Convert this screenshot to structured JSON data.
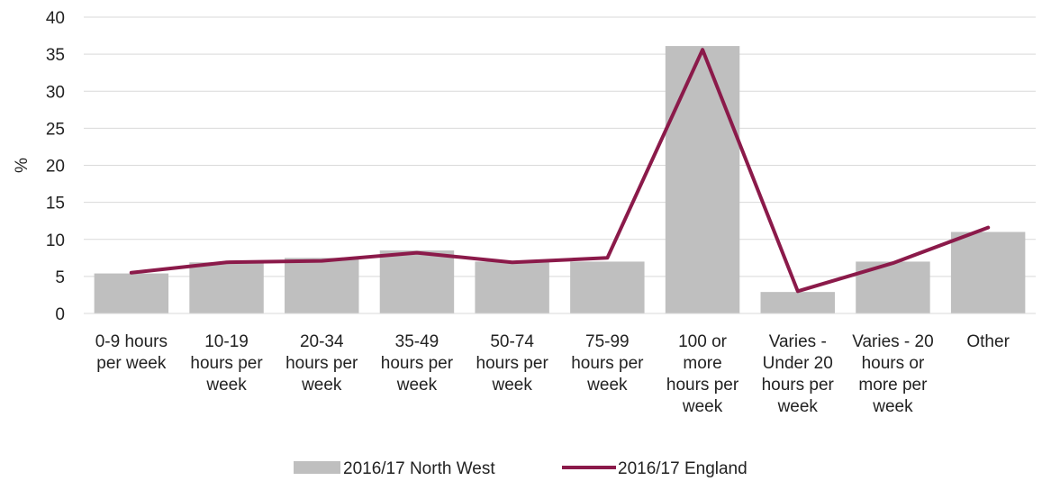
{
  "chart_data": {
    "type": "bar",
    "title": "",
    "xlabel": "",
    "ylabel": "%",
    "ylim": [
      0,
      40
    ],
    "yticks": [
      0,
      5,
      10,
      15,
      20,
      25,
      30,
      35,
      40
    ],
    "grid": true,
    "legend_position": "bottom",
    "categories": [
      [
        "0-9 hours",
        "per week"
      ],
      [
        "10-19",
        "hours per",
        "week"
      ],
      [
        "20-34",
        "hours per",
        "week"
      ],
      [
        "35-49",
        "hours per",
        "week"
      ],
      [
        "50-74",
        "hours per",
        "week"
      ],
      [
        "75-99",
        "hours per",
        "week"
      ],
      [
        "100 or",
        "more",
        "hours per",
        "week"
      ],
      [
        "Varies -",
        "Under 20",
        "hours per",
        "week"
      ],
      [
        "Varies - 20",
        "hours or",
        "more per",
        "week"
      ],
      [
        "Other"
      ]
    ],
    "series": [
      {
        "name": "2016/17 North West",
        "type": "bar",
        "color": "#bfbfbf",
        "values": [
          5.4,
          6.9,
          7.5,
          8.5,
          7.0,
          7.0,
          36.1,
          2.9,
          7.0,
          11.0
        ]
      },
      {
        "name": "2016/17 England",
        "type": "line",
        "color": "#8b1a4a",
        "values": [
          5.5,
          6.9,
          7.1,
          8.2,
          6.9,
          7.5,
          35.6,
          3.0,
          6.8,
          11.6
        ]
      }
    ]
  }
}
